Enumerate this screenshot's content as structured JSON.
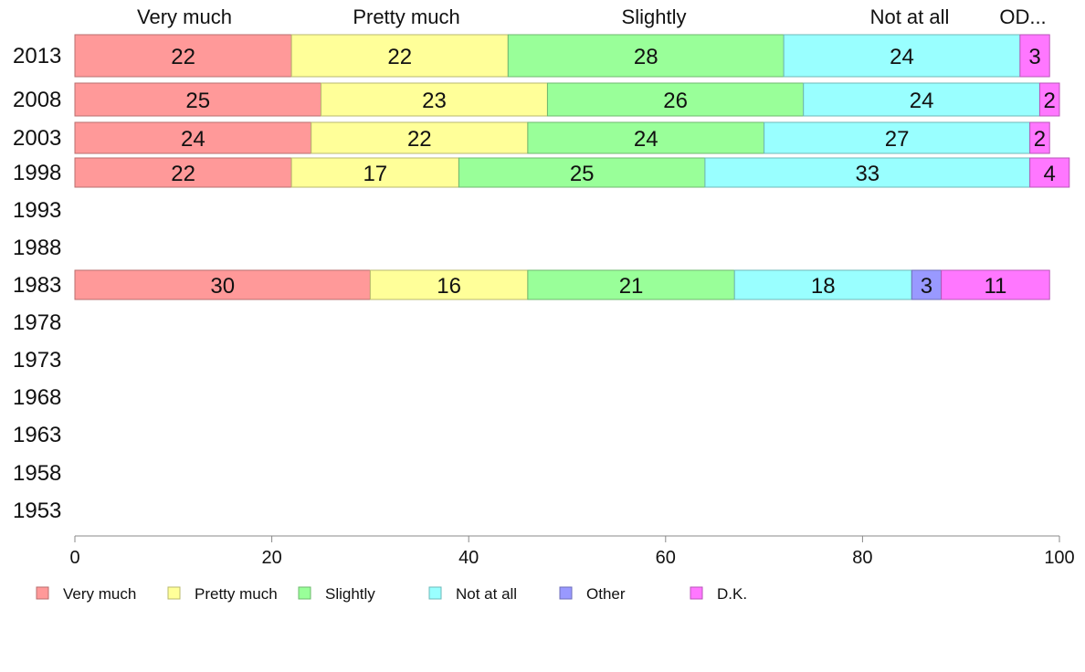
{
  "chart_data": {
    "type": "bar",
    "orientation": "horizontal",
    "stacked": true,
    "categories": [
      "2013",
      "2008",
      "2003",
      "1998",
      "1993",
      "1988",
      "1983",
      "1978",
      "1973",
      "1968",
      "1963",
      "1958",
      "1953"
    ],
    "series": [
      {
        "name": "Very much",
        "color": "#ff9999",
        "values": [
          22,
          25,
          24,
          22,
          null,
          null,
          30,
          null,
          null,
          null,
          null,
          null,
          null
        ]
      },
      {
        "name": "Pretty much",
        "color": "#ffff99",
        "values": [
          22,
          23,
          22,
          17,
          null,
          null,
          16,
          null,
          null,
          null,
          null,
          null,
          null
        ]
      },
      {
        "name": "Slightly",
        "color": "#99ff99",
        "values": [
          28,
          26,
          24,
          25,
          null,
          null,
          21,
          null,
          null,
          null,
          null,
          null,
          null
        ]
      },
      {
        "name": "Not at all",
        "color": "#99ffff",
        "values": [
          24,
          24,
          27,
          33,
          null,
          null,
          18,
          null,
          null,
          null,
          null,
          null,
          null
        ]
      },
      {
        "name": "Other",
        "color": "#9999ff",
        "values": [
          0,
          0,
          0,
          0,
          null,
          null,
          3,
          null,
          null,
          null,
          null,
          null,
          null
        ]
      },
      {
        "name": "D.K.",
        "color": "#ff77ff",
        "values": [
          3,
          2,
          2,
          4,
          null,
          null,
          11,
          null,
          null,
          null,
          null,
          null,
          null
        ]
      }
    ],
    "top_labels": [
      "Very much",
      "Pretty much",
      "Slightly",
      "Not at all",
      "OD..."
    ],
    "xlim": [
      0,
      100
    ],
    "xticks": [
      0,
      20,
      40,
      60,
      80,
      100
    ],
    "grid": false,
    "legend_position": "bottom"
  }
}
